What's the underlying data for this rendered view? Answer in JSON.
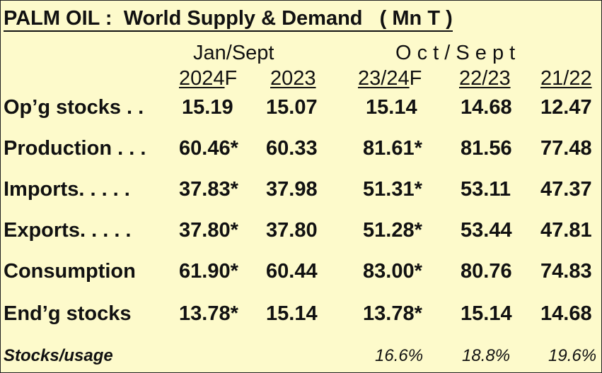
{
  "title": "PALM OIL :  World Supply & Demand   ( Mn T )",
  "headers": {
    "group_jan_sept": "Jan/Sept",
    "group_oct_sept": "O c t / S e p t",
    "years": [
      {
        "u": "2024",
        "rest": "F"
      },
      {
        "u": "2023",
        "rest": ""
      },
      {
        "u": "23/24",
        "rest": "F"
      },
      {
        "u": "22/23",
        "rest": ""
      },
      {
        "u": "21/22",
        "rest": ""
      }
    ]
  },
  "rows": [
    {
      "label": "Op’g stocks . .",
      "values": [
        "15.19",
        "15.07",
        "15.14",
        "14.68",
        "12.47"
      ]
    },
    {
      "label": "Production . . .",
      "values": [
        "60.46*",
        "60.33",
        "81.61*",
        "81.56",
        "77.48"
      ]
    },
    {
      "label": "Imports. . . . .",
      "values": [
        "37.83*",
        "37.98",
        "51.31*",
        "53.11",
        "47.37"
      ]
    },
    {
      "label": "Exports. . . . .",
      "values": [
        "37.80*",
        "37.80",
        "51.28*",
        "53.44",
        "47.81"
      ]
    },
    {
      "label": "Consumption",
      "values": [
        "61.90*",
        "60.44",
        "83.00*",
        "80.76",
        "74.83"
      ]
    },
    {
      "label": "End’g stocks",
      "values": [
        "13.78*",
        "15.14",
        "13.78*",
        "15.14",
        "14.68"
      ]
    }
  ],
  "stocks_usage": {
    "label": "Stocks/usage",
    "values": [
      "16.6%",
      "18.8%",
      "19.6%"
    ]
  }
}
